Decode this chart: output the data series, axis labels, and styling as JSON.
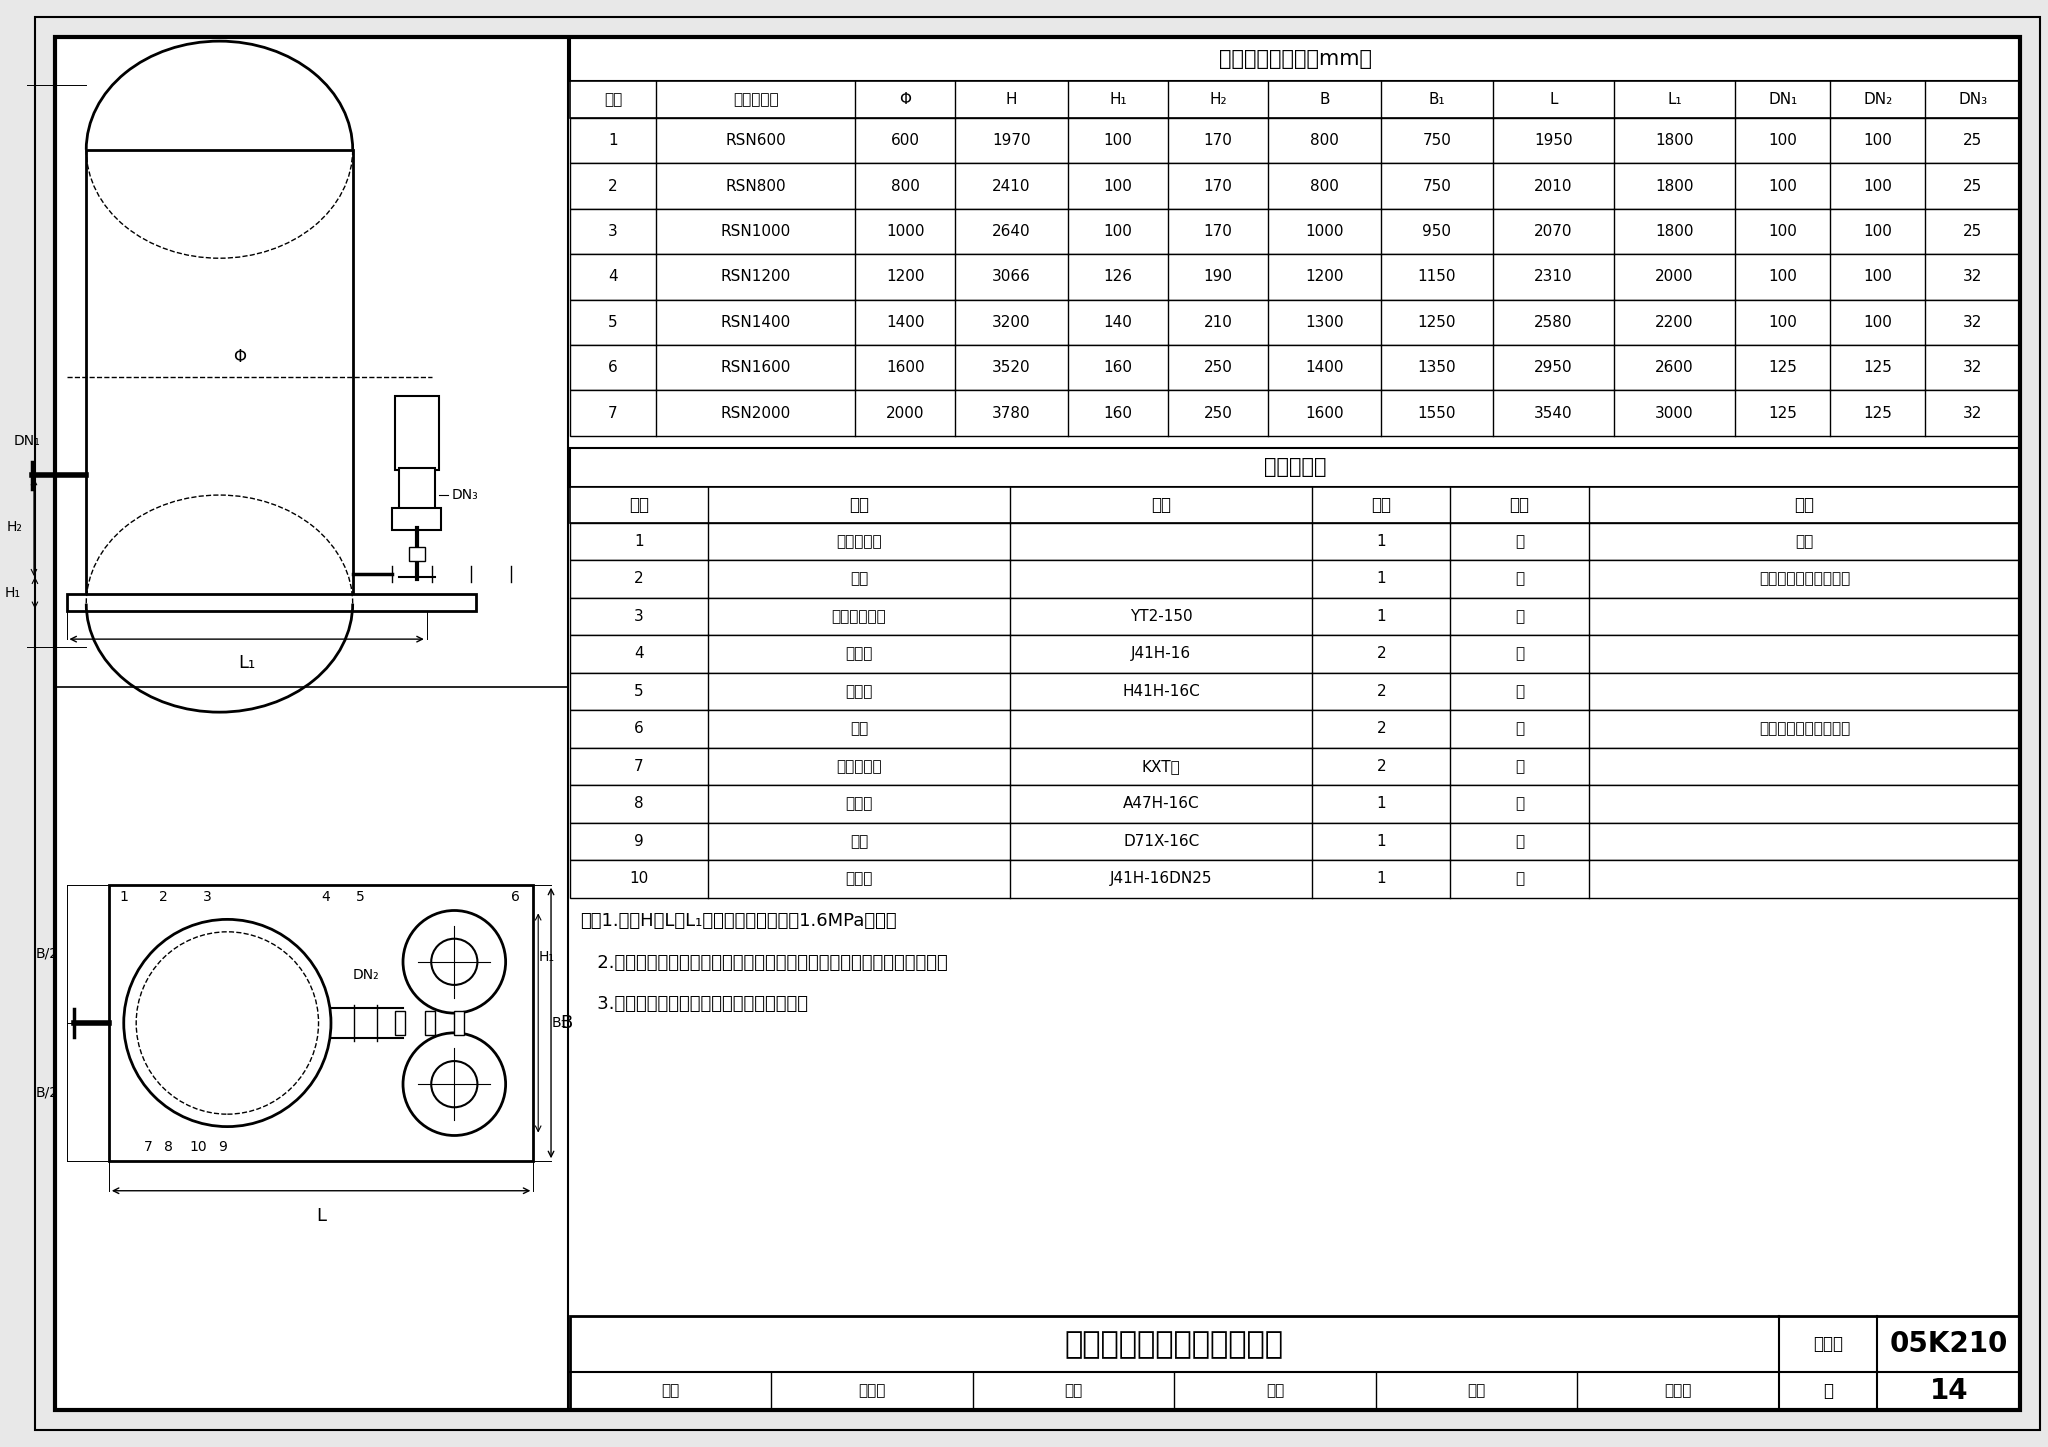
{
  "bg_color": "#ebebeb",
  "title1": "机组装配尺寸表（mm）",
  "table1_headers": [
    "序号",
    "气压罐型号",
    "Φ",
    "H",
    "H₁",
    "H₂",
    "B",
    "B₁",
    "L",
    "L₁",
    "DN₁",
    "DN₂",
    "DN₃"
  ],
  "table1_rows": [
    [
      "1",
      "RSN600",
      "600",
      "1970",
      "100",
      "170",
      "800",
      "750",
      "1950",
      "1800",
      "100",
      "100",
      "25"
    ],
    [
      "2",
      "RSN800",
      "800",
      "2410",
      "100",
      "170",
      "800",
      "750",
      "2010",
      "1800",
      "100",
      "100",
      "25"
    ],
    [
      "3",
      "RSN1000",
      "1000",
      "2640",
      "100",
      "170",
      "1000",
      "950",
      "2070",
      "1800",
      "100",
      "100",
      "25"
    ],
    [
      "4",
      "RSN1200",
      "1200",
      "3066",
      "126",
      "190",
      "1200",
      "1150",
      "2310",
      "2000",
      "100",
      "100",
      "32"
    ],
    [
      "5",
      "RSN1400",
      "1400",
      "3200",
      "140",
      "210",
      "1300",
      "1250",
      "2580",
      "2200",
      "100",
      "100",
      "32"
    ],
    [
      "6",
      "RSN1600",
      "1600",
      "3520",
      "160",
      "250",
      "1400",
      "1350",
      "2950",
      "2600",
      "125",
      "125",
      "32"
    ],
    [
      "7",
      "RSN2000",
      "2000",
      "3780",
      "160",
      "250",
      "1600",
      "1550",
      "3540",
      "3000",
      "125",
      "125",
      "32"
    ]
  ],
  "title2": "设备材料表",
  "table2_headers": [
    "序号",
    "名称",
    "型号",
    "数量",
    "单位",
    "备注"
  ],
  "table2_rows": [
    [
      "1",
      "囊式气压罐",
      "",
      "1",
      "台",
      "立式"
    ],
    [
      "2",
      "底座",
      "",
      "1",
      "座",
      "见立式定压装置底座图"
    ],
    [
      "3",
      "电接点压力表",
      "YT2-150",
      "1",
      "个",
      ""
    ],
    [
      "4",
      "截止阁",
      "J41H-16",
      "2",
      "个",
      ""
    ],
    [
      "5",
      "止回阁",
      "H41H-16C",
      "2",
      "个",
      ""
    ],
    [
      "6",
      "水泵",
      "",
      "2",
      "台",
      "见立式定压装置选型表"
    ],
    [
      "7",
      "橡胶软接头",
      "KXT型",
      "2",
      "个",
      ""
    ],
    [
      "8",
      "安全阁",
      "A47H-16C",
      "1",
      "个",
      ""
    ],
    [
      "9",
      "距阁",
      "D71X-16C",
      "1",
      "个",
      ""
    ],
    [
      "10",
      "泄水阁",
      "J41H-16DN25",
      "1",
      "个",
      ""
    ]
  ],
  "notes_line1": "注：1.尺寸H、L、L₁捬罐体最高工作压力1.6MPa确定。",
  "notes_line2": "   2.本设备有两路出水管，实际可根捬需要任选一路，另一路用盲板封严。",
  "notes_line3": "   3.水泵规格、型号应由工程设计人员选配。",
  "title_main": "立式气压罐定压装置组装图",
  "atlas_no": "05K210",
  "page_no": "14",
  "atlas_label": "图集号",
  "page_label": "页",
  "footer_review": "审核",
  "footer_review_name": "宋孝春",
  "footer_check": "校对",
  "footer_check_name": "王加",
  "footer_design": "设计",
  "footer_design_name": "张亚立"
}
